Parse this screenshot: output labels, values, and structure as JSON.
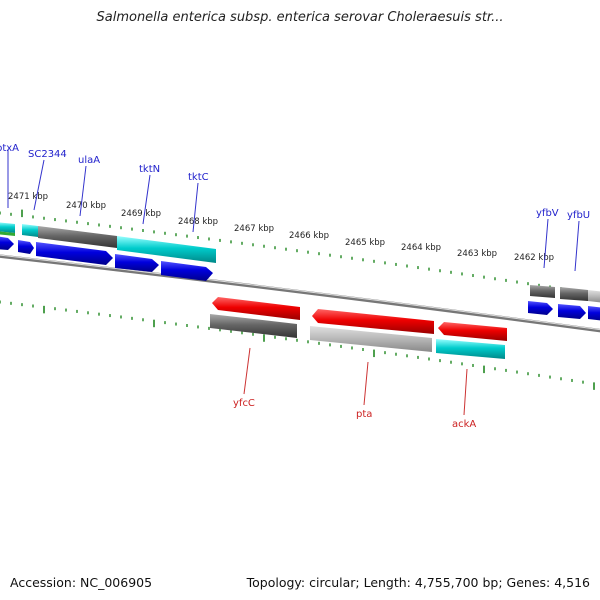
{
  "title": "Salmonella enterica subsp. enterica serovar Choleraesuis str...",
  "footer": {
    "accession": "Accession: NC_006905",
    "summary": "Topology: circular; Length: 4,755,700 bp; Genes: 4,516"
  },
  "scale_labels": [
    "2471 kbp",
    "2470 kbp",
    "2469 kbp",
    "2468 kbp",
    "2467 kbp",
    "2466 kbp",
    "2465 kbp",
    "2464 kbp",
    "2463 kbp",
    "2462 kbp"
  ],
  "genes_forward": [
    "ptxA",
    "SC2344",
    "ulaA",
    "tktN",
    "tktC",
    "yfbV",
    "yfbU"
  ],
  "genes_reverse": [
    "yfcC",
    "pta",
    "ackA"
  ],
  "colors": {
    "forward_cds": "#0000dd",
    "reverse_cds": "#ee0000",
    "gene_gray": "#666666",
    "gene_light_gray": "#bbbbbb",
    "gene_cyan": "#00cccc",
    "tick_green": "#228822",
    "backbone": "#888888",
    "label_forward": "#2222cc",
    "label_reverse": "#cc2222"
  }
}
